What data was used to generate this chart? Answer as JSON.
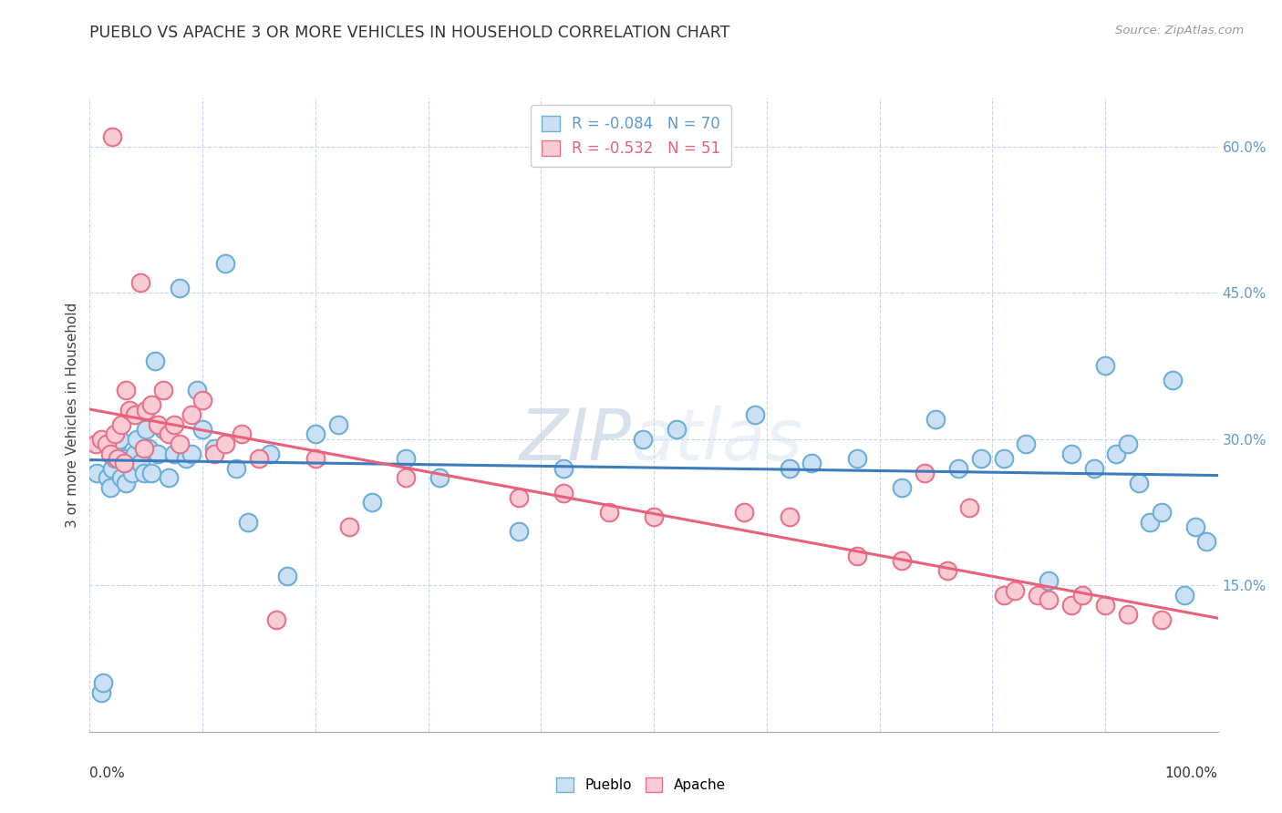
{
  "title": "PUEBLO VS APACHE 3 OR MORE VEHICLES IN HOUSEHOLD CORRELATION CHART",
  "source": "Source: ZipAtlas.com",
  "ylabel": "3 or more Vehicles in Household",
  "xlim": [
    0,
    1
  ],
  "ylim": [
    0.0,
    0.65
  ],
  "yticks": [
    0.15,
    0.3,
    0.45,
    0.6
  ],
  "ytick_labels": [
    "15.0%",
    "30.0%",
    "45.0%",
    "60.0%"
  ],
  "pueblo_R": "-0.084",
  "pueblo_N": "70",
  "apache_R": "-0.532",
  "apache_N": "51",
  "pueblo_color": "#cce0f5",
  "apache_color": "#f9ccd5",
  "pueblo_edge_color": "#6baed6",
  "apache_edge_color": "#e8728a",
  "pueblo_line_color": "#3d7bbf",
  "apache_line_color": "#e8607a",
  "watermark": "ZIPatlas",
  "pueblo_x": [
    0.006,
    0.01,
    0.012,
    0.016,
    0.018,
    0.02,
    0.022,
    0.023,
    0.024,
    0.026,
    0.028,
    0.03,
    0.032,
    0.035,
    0.038,
    0.04,
    0.042,
    0.045,
    0.048,
    0.05,
    0.052,
    0.055,
    0.058,
    0.06,
    0.065,
    0.07,
    0.075,
    0.08,
    0.085,
    0.09,
    0.095,
    0.1,
    0.11,
    0.12,
    0.13,
    0.14,
    0.16,
    0.175,
    0.2,
    0.22,
    0.25,
    0.28,
    0.31,
    0.38,
    0.42,
    0.49,
    0.52,
    0.59,
    0.62,
    0.64,
    0.68,
    0.72,
    0.75,
    0.77,
    0.79,
    0.81,
    0.83,
    0.85,
    0.87,
    0.89,
    0.9,
    0.91,
    0.92,
    0.93,
    0.94,
    0.95,
    0.96,
    0.97,
    0.98,
    0.99
  ],
  "pueblo_y": [
    0.265,
    0.04,
    0.05,
    0.26,
    0.25,
    0.27,
    0.28,
    0.285,
    0.295,
    0.3,
    0.26,
    0.28,
    0.255,
    0.275,
    0.265,
    0.285,
    0.3,
    0.275,
    0.265,
    0.31,
    0.29,
    0.265,
    0.38,
    0.285,
    0.31,
    0.26,
    0.285,
    0.455,
    0.28,
    0.285,
    0.35,
    0.31,
    0.29,
    0.48,
    0.27,
    0.215,
    0.285,
    0.16,
    0.305,
    0.315,
    0.235,
    0.28,
    0.26,
    0.205,
    0.27,
    0.3,
    0.31,
    0.325,
    0.27,
    0.275,
    0.28,
    0.25,
    0.32,
    0.27,
    0.28,
    0.28,
    0.295,
    0.155,
    0.285,
    0.27,
    0.375,
    0.285,
    0.295,
    0.255,
    0.215,
    0.225,
    0.36,
    0.14,
    0.21,
    0.195
  ],
  "apache_x": [
    0.005,
    0.01,
    0.015,
    0.018,
    0.02,
    0.022,
    0.025,
    0.028,
    0.03,
    0.032,
    0.035,
    0.04,
    0.045,
    0.048,
    0.05,
    0.055,
    0.06,
    0.065,
    0.07,
    0.075,
    0.08,
    0.09,
    0.1,
    0.11,
    0.12,
    0.135,
    0.15,
    0.165,
    0.2,
    0.23,
    0.28,
    0.38,
    0.42,
    0.46,
    0.5,
    0.58,
    0.62,
    0.68,
    0.72,
    0.74,
    0.76,
    0.78,
    0.81,
    0.82,
    0.84,
    0.85,
    0.87,
    0.88,
    0.9,
    0.92,
    0.95
  ],
  "apache_y": [
    0.295,
    0.3,
    0.295,
    0.285,
    0.61,
    0.305,
    0.28,
    0.315,
    0.275,
    0.35,
    0.33,
    0.325,
    0.46,
    0.29,
    0.33,
    0.335,
    0.315,
    0.35,
    0.305,
    0.315,
    0.295,
    0.325,
    0.34,
    0.285,
    0.295,
    0.305,
    0.28,
    0.115,
    0.28,
    0.21,
    0.26,
    0.24,
    0.245,
    0.225,
    0.22,
    0.225,
    0.22,
    0.18,
    0.175,
    0.265,
    0.165,
    0.23,
    0.14,
    0.145,
    0.14,
    0.135,
    0.13,
    0.14,
    0.13,
    0.12,
    0.115
  ]
}
